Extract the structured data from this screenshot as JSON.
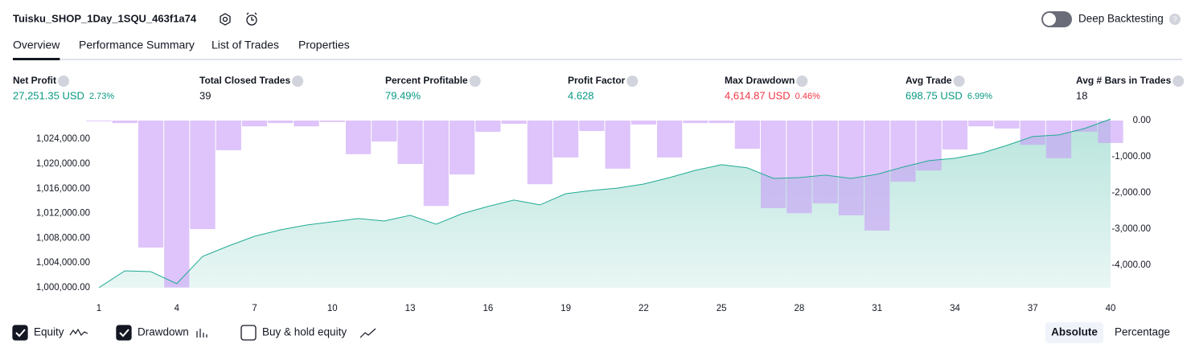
{
  "header": {
    "title": "Tuisku_SHOP_1Day_1SQU_463f1a74",
    "toggle_label": "Deep Backtesting",
    "toggle_on": false
  },
  "tabs": {
    "items": [
      "Overview",
      "Performance Summary",
      "List of Trades",
      "Properties"
    ],
    "active": 0
  },
  "stats": [
    {
      "label": "Net Profit",
      "value": "27,251.35 USD",
      "percent": "2.73%",
      "color": "#089981"
    },
    {
      "label": "Total Closed Trades",
      "value": "39",
      "color": "#131722"
    },
    {
      "label": "Percent Profitable",
      "value": "79.49%",
      "color": "#089981"
    },
    {
      "label": "Profit Factor",
      "value": "4.628",
      "color": "#089981"
    },
    {
      "label": "Max Drawdown",
      "value": "4,614.87 USD",
      "percent": "0.46%",
      "color": "#f23645"
    },
    {
      "label": "Avg Trade",
      "value": "698.75 USD",
      "percent": "6.99%",
      "color": "#089981"
    },
    {
      "label": "Avg # Bars in Trades",
      "value": "18",
      "color": "#131722"
    }
  ],
  "chart_data": {
    "type": "equity_drawdown",
    "x": [
      1,
      2,
      3,
      4,
      5,
      6,
      7,
      8,
      9,
      10,
      11,
      12,
      13,
      14,
      15,
      16,
      17,
      18,
      19,
      20,
      21,
      22,
      23,
      24,
      25,
      26,
      27,
      28,
      29,
      30,
      31,
      32,
      33,
      34,
      35,
      36,
      37,
      38,
      39,
      40
    ],
    "xlim": [
      0.535,
      40.465
    ],
    "xticks": [
      1,
      4,
      7,
      10,
      13,
      16,
      19,
      22,
      25,
      28,
      31,
      34,
      37,
      40
    ],
    "ylim": [
      1000000,
      1027000
    ],
    "yticks": [
      {
        "value": 1000000,
        "label": "1,000,000.00"
      },
      {
        "value": 1004000,
        "label": "1,004,000.00"
      },
      {
        "value": 1008000,
        "label": "1,008,000.00"
      },
      {
        "value": 1012000,
        "label": "1,012,000.00"
      },
      {
        "value": 1016000,
        "label": "1,016,000.00"
      },
      {
        "value": 1020000,
        "label": "1,020,000.00"
      },
      {
        "value": 1024000,
        "label": "1,024,000.00"
      }
    ],
    "y2lim": [
      -4620,
      0
    ],
    "y2ticks": [
      {
        "value": 0,
        "label": "0.00"
      },
      {
        "value": -1000,
        "label": "-1,000.00"
      },
      {
        "value": -2000,
        "label": "-2,000.00"
      },
      {
        "value": -3000,
        "label": "-3,000.00"
      },
      {
        "value": -4000,
        "label": "-4,000.00"
      }
    ],
    "grid": false,
    "series": [
      {
        "name": "Equity",
        "visible": true,
        "color": "#22ab94",
        "values": [
          1000000,
          1002730,
          1002600,
          1000650,
          1005060,
          1006750,
          1008310,
          1009350,
          1010130,
          1010650,
          1011170,
          1010780,
          1011690,
          1010260,
          1011950,
          1013120,
          1014160,
          1013380,
          1015190,
          1015710,
          1016100,
          1016750,
          1017790,
          1018960,
          1019870,
          1019350,
          1017660,
          1017790,
          1018180,
          1017660,
          1018310,
          1019480,
          1020520,
          1020910,
          1021690,
          1022990,
          1024420,
          1024680,
          1025710,
          1027251.35
        ]
      },
      {
        "name": "Drawdown",
        "visible": true,
        "axis": "y2",
        "color": "#c89cf7",
        "values": [
          -20,
          -70,
          -3510,
          -4615,
          -3000,
          -820,
          -160,
          -70,
          -160,
          -40,
          -930,
          -580,
          -1200,
          -2360,
          -1490,
          -310,
          -90,
          -1760,
          -1020,
          -290,
          -1330,
          -110,
          -1020,
          -70,
          -70,
          -780,
          -2420,
          -2560,
          -2290,
          -2620,
          -3040,
          -1690,
          -1380,
          -800,
          -160,
          -220,
          -670,
          -1040,
          -310,
          -620
        ]
      },
      {
        "name": "Buy & hold equity",
        "visible": false
      }
    ]
  },
  "view_modes": {
    "items": [
      "Absolute",
      "Percentage"
    ],
    "active": 0
  }
}
